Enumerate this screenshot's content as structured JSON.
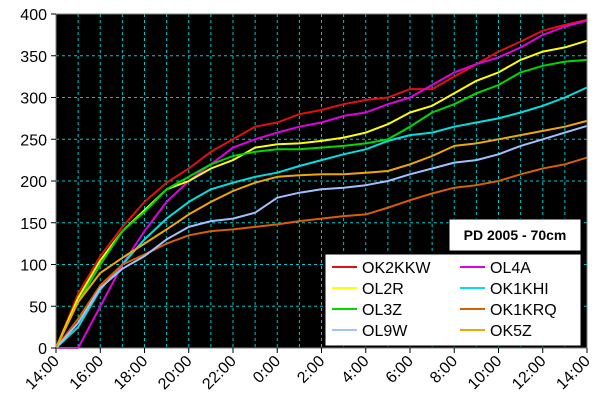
{
  "chart_data": {
    "type": "line",
    "title": "",
    "xlabel": "",
    "ylabel": "",
    "badge": "PD 2005 - 70cm",
    "ylim": [
      0,
      400
    ],
    "y_ticks": [
      0,
      50,
      100,
      150,
      200,
      250,
      300,
      350,
      400
    ],
    "x_tick_labels": [
      "14:00",
      "16:00",
      "18:00",
      "20:00",
      "22:00",
      "0:00",
      "2:00",
      "4:00",
      "6:00",
      "8:00",
      "10:00",
      "12:00",
      "14:00"
    ],
    "x_hours": [
      0,
      1,
      2,
      3,
      4,
      5,
      6,
      7,
      8,
      9,
      10,
      11,
      12,
      13,
      14,
      15,
      16,
      17,
      18,
      19,
      20,
      21,
      22,
      23,
      24
    ],
    "grid": true,
    "legend_position": "lower-right",
    "background": "#000000",
    "grid_color": "#00c8c8",
    "series": [
      {
        "name": "OK2KKW",
        "color": "#e01010",
        "values": [
          0,
          65,
          110,
          145,
          175,
          198,
          215,
          235,
          250,
          265,
          270,
          280,
          285,
          292,
          297,
          300,
          310,
          310,
          325,
          340,
          355,
          367,
          380,
          387,
          393
        ]
      },
      {
        "name": "OL4A",
        "color": "#e000e0",
        "values": [
          0,
          0,
          50,
          100,
          140,
          175,
          200,
          220,
          240,
          250,
          258,
          265,
          270,
          278,
          282,
          292,
          300,
          315,
          330,
          340,
          348,
          360,
          375,
          385,
          392
        ]
      },
      {
        "name": "OL2R",
        "color": "#ffff00",
        "values": [
          0,
          60,
          105,
          140,
          165,
          190,
          200,
          215,
          225,
          240,
          244,
          245,
          248,
          252,
          258,
          268,
          282,
          290,
          305,
          320,
          330,
          345,
          355,
          360,
          368
        ]
      },
      {
        "name": "OK1KHI",
        "color": "#00e0e0",
        "values": [
          0,
          25,
          70,
          100,
          130,
          155,
          175,
          190,
          198,
          205,
          210,
          218,
          225,
          232,
          238,
          248,
          255,
          258,
          265,
          270,
          275,
          282,
          290,
          300,
          312
        ]
      },
      {
        "name": "OL3Z",
        "color": "#00d800",
        "values": [
          0,
          55,
          100,
          140,
          163,
          190,
          205,
          220,
          230,
          235,
          238,
          238,
          240,
          242,
          245,
          250,
          265,
          282,
          292,
          305,
          315,
          330,
          338,
          343,
          345
        ]
      },
      {
        "name": "OK1KRQ",
        "color": "#d86000",
        "values": [
          0,
          35,
          75,
          100,
          112,
          125,
          135,
          140,
          142,
          145,
          148,
          152,
          155,
          158,
          160,
          168,
          177,
          185,
          192,
          195,
          200,
          208,
          215,
          220,
          228
        ]
      },
      {
        "name": "OL9W",
        "color": "#a0c0ff",
        "values": [
          0,
          30,
          72,
          95,
          110,
          130,
          145,
          152,
          155,
          162,
          180,
          186,
          190,
          192,
          195,
          200,
          208,
          215,
          222,
          225,
          232,
          242,
          250,
          258,
          266
        ]
      },
      {
        "name": "OK5Z",
        "color": "#f0a800",
        "values": [
          0,
          55,
          90,
          108,
          125,
          142,
          160,
          175,
          188,
          198,
          205,
          207,
          208,
          208,
          210,
          212,
          220,
          230,
          242,
          245,
          250,
          255,
          260,
          265,
          272
        ]
      }
    ]
  }
}
